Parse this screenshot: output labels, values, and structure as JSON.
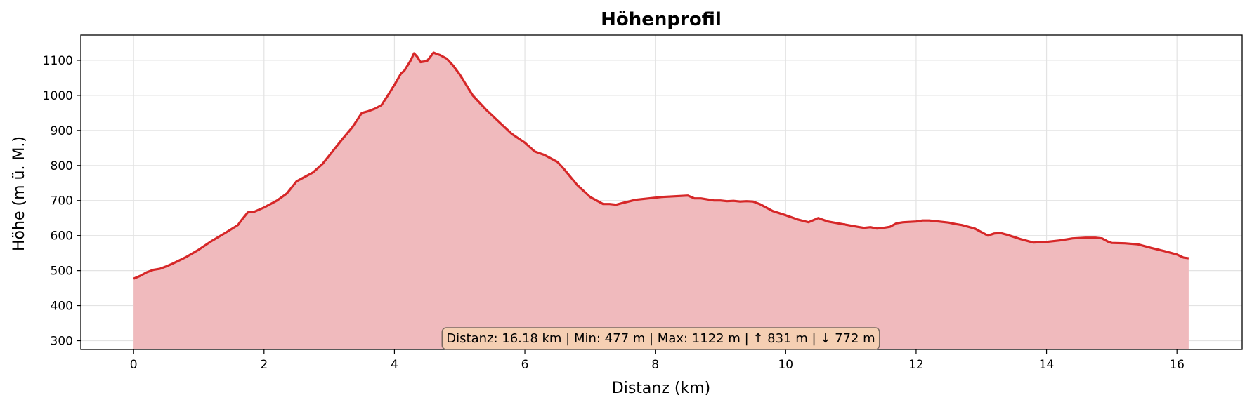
{
  "chart_data": {
    "type": "area",
    "title": "Höhenprofil",
    "xlabel": "Distanz (km)",
    "ylabel": "Höhe (m ü. M.)",
    "xlim": [
      -0.81,
      17.0
    ],
    "ylim": [
      275,
      1172
    ],
    "xticks": [
      0,
      2,
      4,
      6,
      8,
      10,
      12,
      14,
      16
    ],
    "yticks": [
      300,
      400,
      500,
      600,
      700,
      800,
      900,
      1000,
      1100
    ],
    "grid": true,
    "line_color": "#d62728",
    "fill_color": "#f0babd",
    "annotation": "Distanz: 16.18 km | Min: 477 m | Max: 1122 m | ↑ 831 m | ↓ 772 m",
    "annotation_bg": "#f5cfb3",
    "x": [
      0,
      0.1,
      0.2,
      0.3,
      0.4,
      0.5,
      0.6,
      0.8,
      1.0,
      1.2,
      1.4,
      1.6,
      1.65,
      1.75,
      1.85,
      2.0,
      2.1,
      2.2,
      2.35,
      2.5,
      2.6,
      2.75,
      2.9,
      3.05,
      3.2,
      3.35,
      3.5,
      3.6,
      3.7,
      3.8,
      3.9,
      4.0,
      4.1,
      4.15,
      4.2,
      4.25,
      4.3,
      4.35,
      4.4,
      4.5,
      4.55,
      4.6,
      4.65,
      4.7,
      4.75,
      4.8,
      4.9,
      5.0,
      5.2,
      5.4,
      5.6,
      5.8,
      6.0,
      6.15,
      6.3,
      6.5,
      6.6,
      6.8,
      7.0,
      7.2,
      7.3,
      7.4,
      7.5,
      7.7,
      7.9,
      8.1,
      8.3,
      8.5,
      8.6,
      8.7,
      8.8,
      8.9,
      9.0,
      9.1,
      9.2,
      9.3,
      9.4,
      9.5,
      9.6,
      9.8,
      10.0,
      10.2,
      10.35,
      10.5,
      10.65,
      10.8,
      10.95,
      11.1,
      11.2,
      11.3,
      11.4,
      11.5,
      11.6,
      11.7,
      11.8,
      12.0,
      12.1,
      12.2,
      12.3,
      12.5,
      12.6,
      12.7,
      12.8,
      12.9,
      13.0,
      13.1,
      13.2,
      13.3,
      13.4,
      13.6,
      13.8,
      14.0,
      14.2,
      14.4,
      14.6,
      14.75,
      14.85,
      14.95,
      15.0,
      15.2,
      15.4,
      15.6,
      15.8,
      16.0,
      16.1,
      16.18
    ],
    "y": [
      477,
      485,
      495,
      502,
      505,
      512,
      520,
      538,
      560,
      585,
      607,
      630,
      643,
      666,
      668,
      680,
      690,
      700,
      720,
      755,
      765,
      780,
      805,
      840,
      875,
      908,
      950,
      955,
      962,
      972,
      1000,
      1030,
      1062,
      1070,
      1085,
      1100,
      1120,
      1110,
      1095,
      1098,
      1110,
      1122,
      1118,
      1115,
      1110,
      1105,
      1085,
      1060,
      1000,
      960,
      925,
      890,
      865,
      840,
      830,
      810,
      790,
      745,
      710,
      690,
      690,
      688,
      693,
      702,
      706,
      710,
      712,
      714,
      706,
      706,
      703,
      700,
      700,
      698,
      699,
      697,
      698,
      697,
      690,
      670,
      658,
      645,
      638,
      650,
      640,
      635,
      630,
      625,
      622,
      624,
      620,
      622,
      625,
      635,
      638,
      640,
      643,
      643,
      641,
      637,
      633,
      630,
      625,
      620,
      610,
      600,
      606,
      607,
      602,
      590,
      580,
      582,
      586,
      592,
      594,
      594,
      592,
      582,
      579,
      578,
      575,
      565,
      556,
      546,
      537,
      535
    ]
  }
}
